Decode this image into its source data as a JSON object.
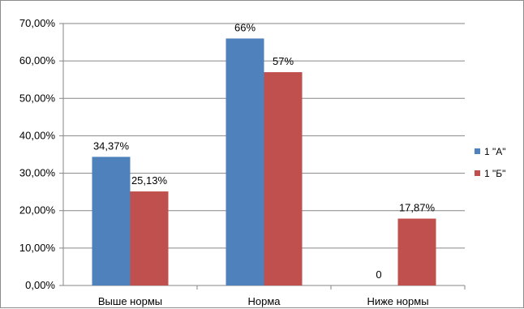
{
  "chart_data": {
    "type": "bar",
    "categories": [
      "Выше нормы",
      "Норма",
      "Ниже нормы"
    ],
    "series": [
      {
        "name": "1 \"А\"",
        "values": [
          34.37,
          66,
          0
        ],
        "labels": [
          "34,37%",
          "66%",
          "0"
        ],
        "color": "#4f81bd"
      },
      {
        "name": "1 \"Б\"",
        "values": [
          25.13,
          57,
          17.87
        ],
        "labels": [
          "25,13%",
          "57%",
          "17,87%"
        ],
        "color": "#c0504d"
      }
    ],
    "yticks": [
      {
        "value": 0,
        "label": "0,00%"
      },
      {
        "value": 10,
        "label": "10,00%"
      },
      {
        "value": 20,
        "label": "20,00%"
      },
      {
        "value": 30,
        "label": "30,00%"
      },
      {
        "value": 40,
        "label": "40,00%"
      },
      {
        "value": 50,
        "label": "50,00%"
      },
      {
        "value": 60,
        "label": "60,00%"
      },
      {
        "value": 70,
        "label": "70,00%"
      }
    ],
    "ylim": [
      0,
      70
    ],
    "grid": true,
    "legend": "right",
    "title": "",
    "xlabel": "",
    "ylabel": "",
    "gridline_color": "#868686"
  }
}
